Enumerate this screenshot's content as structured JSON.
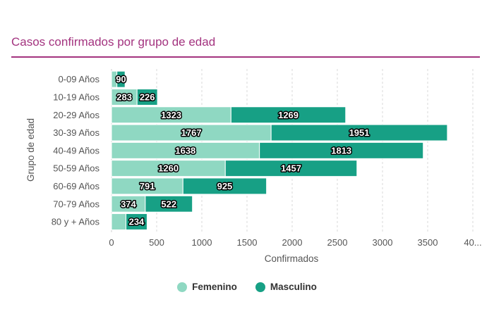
{
  "chart_data": {
    "type": "bar",
    "orientation": "horizontal",
    "stacked": true,
    "title": "Casos confirmados por grupo de edad",
    "xlabel": "Confirmados",
    "ylabel": "Grupo de edad",
    "categories": [
      "0-09 Años",
      "10-19 Años",
      "20-29 Años",
      "30-39 Años",
      "40-49 Años",
      "50-59 Años",
      "60-69 Años",
      "70-79 Años",
      "80 y + Años"
    ],
    "series": [
      {
        "name": "Femenino",
        "color": "#8fd8c2",
        "values": [
          60,
          283,
          1323,
          1767,
          1638,
          1260,
          791,
          374,
          160
        ]
      },
      {
        "name": "Masculino",
        "color": "#17a085",
        "values": [
          90,
          226,
          1269,
          1951,
          1813,
          1457,
          925,
          522,
          234
        ]
      }
    ],
    "data_labels": [
      [
        "",
        "283",
        "1323",
        "1767",
        "1638",
        "1260",
        "791",
        "374",
        ""
      ],
      [
        "90",
        "226",
        "1269",
        "1951",
        "1813",
        "1457",
        "925",
        "522",
        "234"
      ]
    ],
    "x_ticks": [
      "0",
      "500",
      "1000",
      "1500",
      "2000",
      "2500",
      "3000",
      "3500",
      "40..."
    ],
    "x_tick_values": [
      0,
      500,
      1000,
      1500,
      2000,
      2500,
      3000,
      3500,
      4000
    ],
    "xlim": [
      0,
      4000
    ],
    "grid": "vertical dashed",
    "legend": "bottom-center"
  }
}
